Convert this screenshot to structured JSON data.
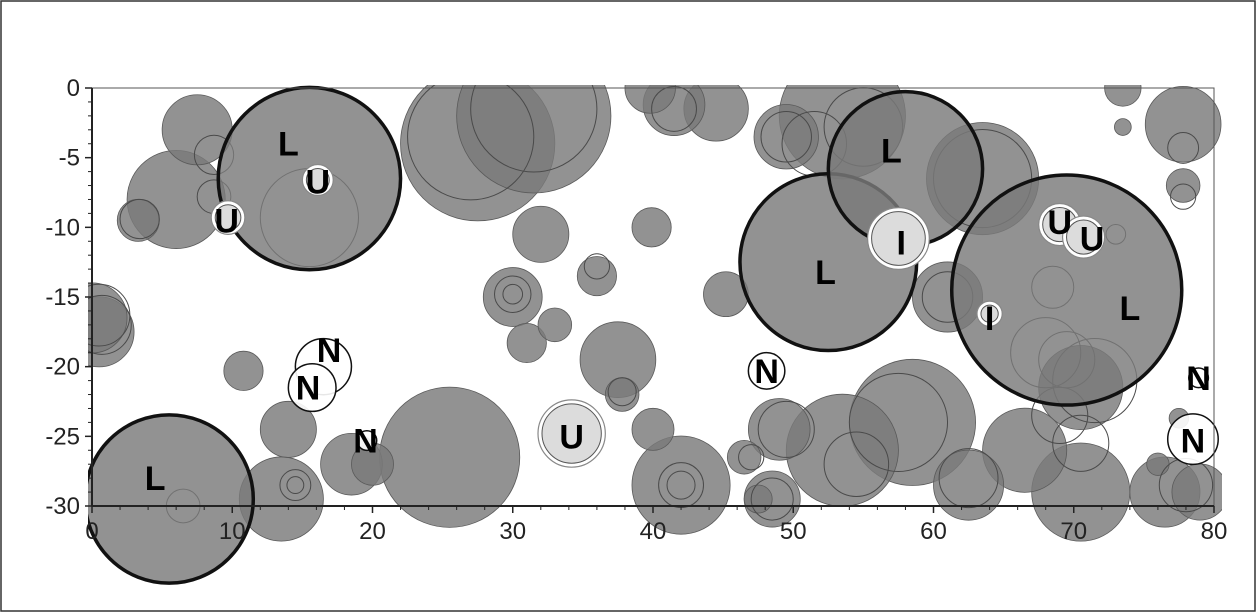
{
  "chart_data": {
    "type": "scatter",
    "title": "",
    "xlabel": "",
    "ylabel": "",
    "xlim": [
      0,
      80
    ],
    "ylim": [
      -30,
      0
    ],
    "grid": false,
    "x_ticks": [
      "0",
      "10",
      "20",
      "30",
      "40",
      "50",
      "60",
      "70",
      "80"
    ],
    "y_ticks": [
      "0",
      "-5",
      "-10",
      "-15",
      "-20",
      "-25",
      "-30"
    ],
    "colors": {
      "filled": "#7a7a7a",
      "light": "#dcdcdc",
      "stroke": "#111111"
    },
    "circles": [
      {
        "x": 27.5,
        "y": -4,
        "r": 5.5,
        "style": "filled"
      },
      {
        "x": 31.5,
        "y": -2,
        "r": 5.5,
        "style": "filled"
      },
      {
        "x": 25.5,
        "y": -26.5,
        "r": 5,
        "style": "filled"
      },
      {
        "x": 58.5,
        "y": -24,
        "r": 4.5,
        "style": "filled"
      },
      {
        "x": 53.5,
        "y": -26,
        "r": 4,
        "style": "filled"
      },
      {
        "x": 53.5,
        "y": -2,
        "r": 4.5,
        "style": "filled"
      },
      {
        "x": 63.5,
        "y": -6.5,
        "r": 4,
        "style": "filled"
      },
      {
        "x": 42,
        "y": -28.5,
        "r": 3.5,
        "style": "filled"
      },
      {
        "x": 70.5,
        "y": -29,
        "r": 3.5,
        "style": "filled"
      },
      {
        "x": 66.5,
        "y": -26,
        "r": 3,
        "style": "filled"
      },
      {
        "x": 62.5,
        "y": -28.5,
        "r": 2.5,
        "style": "filled"
      },
      {
        "x": 70.5,
        "y": -21.5,
        "r": 3,
        "style": "filled"
      },
      {
        "x": 6,
        "y": -8,
        "r": 3.5,
        "style": "filled"
      },
      {
        "x": 7.5,
        "y": -3,
        "r": 2.5,
        "style": "filled"
      },
      {
        "x": 0.5,
        "y": -17.5,
        "r": 2.5,
        "style": "filled"
      },
      {
        "x": 0,
        "y": -16.5,
        "r": 2.5,
        "style": "filled"
      },
      {
        "x": 13.5,
        "y": -29.5,
        "r": 3,
        "style": "filled"
      },
      {
        "x": 14,
        "y": -24.5,
        "r": 2,
        "style": "filled"
      },
      {
        "x": 18.5,
        "y": -27,
        "r": 2.2,
        "style": "filled"
      },
      {
        "x": 20,
        "y": -27,
        "r": 1.5,
        "style": "filled"
      },
      {
        "x": 37.5,
        "y": -19.5,
        "r": 2.7,
        "style": "filled"
      },
      {
        "x": 49,
        "y": -24.5,
        "r": 2.2,
        "style": "filled"
      },
      {
        "x": 48.5,
        "y": -29.5,
        "r": 2,
        "style": "filled"
      },
      {
        "x": 61,
        "y": -15,
        "r": 2.5,
        "style": "filled"
      },
      {
        "x": 49.5,
        "y": -3.5,
        "r": 2.3,
        "style": "filled"
      },
      {
        "x": 44.5,
        "y": -1.5,
        "r": 2.3,
        "style": "filled"
      },
      {
        "x": 41.5,
        "y": -1.2,
        "r": 2.2,
        "style": "filled"
      },
      {
        "x": 39.8,
        "y": 0,
        "r": 1.8,
        "style": "filled"
      },
      {
        "x": 32,
        "y": -10.5,
        "r": 2,
        "style": "filled"
      },
      {
        "x": 30,
        "y": -15,
        "r": 2.1,
        "style": "filled"
      },
      {
        "x": 31,
        "y": -18.3,
        "r": 1.4,
        "style": "filled"
      },
      {
        "x": 33,
        "y": -17,
        "r": 1.2,
        "style": "filled"
      },
      {
        "x": 36,
        "y": -13.5,
        "r": 1.4,
        "style": "filled"
      },
      {
        "x": 39.9,
        "y": -10,
        "r": 1.4,
        "style": "filled"
      },
      {
        "x": 45.2,
        "y": -14.8,
        "r": 1.6,
        "style": "filled"
      },
      {
        "x": 40,
        "y": -24.5,
        "r": 1.5,
        "style": "filled"
      },
      {
        "x": 37.8,
        "y": -22,
        "r": 1.2,
        "style": "filled"
      },
      {
        "x": 10.8,
        "y": -20.3,
        "r": 1.4,
        "style": "filled"
      },
      {
        "x": 3.3,
        "y": -9.5,
        "r": 1.5,
        "style": "filled"
      },
      {
        "x": 73.5,
        "y": 0,
        "r": 1.3,
        "style": "filled"
      },
      {
        "x": 73.5,
        "y": -2.8,
        "r": 0.6,
        "style": "filled"
      },
      {
        "x": 77.8,
        "y": -2.6,
        "r": 2.7,
        "style": "filled"
      },
      {
        "x": 77.8,
        "y": -7,
        "r": 1.2,
        "style": "filled"
      },
      {
        "x": 76.5,
        "y": -29,
        "r": 2.5,
        "style": "filled"
      },
      {
        "x": 79,
        "y": -29,
        "r": 2,
        "style": "filled"
      },
      {
        "x": 46.5,
        "y": -26.5,
        "r": 1.2,
        "style": "filled"
      },
      {
        "x": 47.5,
        "y": -29.5,
        "r": 1,
        "style": "filled"
      },
      {
        "x": 76,
        "y": -27,
        "r": 0.8,
        "style": "filled"
      },
      {
        "x": 77.5,
        "y": -23.7,
        "r": 0.7,
        "style": "filled"
      },
      {
        "x": 15.5,
        "y": -6.5,
        "r": 6.5,
        "style": "bold"
      },
      {
        "x": 5.5,
        "y": -29.5,
        "r": 6,
        "style": "bold"
      },
      {
        "x": 52.5,
        "y": -12.5,
        "r": 6.3,
        "style": "bold"
      },
      {
        "x": 58,
        "y": -5.8,
        "r": 5.5,
        "style": "bold"
      },
      {
        "x": 69.5,
        "y": -14.5,
        "r": 8.2,
        "style": "bold"
      },
      {
        "x": 16.1,
        "y": -6.6,
        "r": 1.1,
        "style": "light"
      },
      {
        "x": 9.7,
        "y": -9.3,
        "r": 1.2,
        "style": "light"
      },
      {
        "x": 57.5,
        "y": -10.8,
        "r": 2.2,
        "style": "light"
      },
      {
        "x": 64,
        "y": -16.2,
        "r": 0.9,
        "style": "light"
      },
      {
        "x": 69,
        "y": -9.8,
        "r": 1.5,
        "style": "light"
      },
      {
        "x": 70.7,
        "y": -10.7,
        "r": 1.5,
        "style": "light"
      },
      {
        "x": 34.2,
        "y": -24.8,
        "r": 2.4,
        "style": "light"
      },
      {
        "x": 16.5,
        "y": -20,
        "r": 2,
        "style": "open"
      },
      {
        "x": 15.7,
        "y": -21.5,
        "r": 1.7,
        "style": "open"
      },
      {
        "x": 48.1,
        "y": -20.3,
        "r": 1.3,
        "style": "open"
      },
      {
        "x": 78.5,
        "y": -25.2,
        "r": 1.8,
        "style": "open"
      },
      {
        "x": 78.9,
        "y": -20.8,
        "r": 0.7,
        "style": "open"
      },
      {
        "x": 19.6,
        "y": -25.3,
        "r": 0.7,
        "style": "open"
      }
    ],
    "outlines": [
      {
        "x": 27,
        "y": -3.5,
        "r": 4.5
      },
      {
        "x": 31.5,
        "y": -1.5,
        "r": 4.5
      },
      {
        "x": 15.5,
        "y": -9.3,
        "r": 3.5
      },
      {
        "x": 8.7,
        "y": -4.8,
        "r": 1.4
      },
      {
        "x": 8.7,
        "y": -7.8,
        "r": 1.2
      },
      {
        "x": 3.4,
        "y": -9.4,
        "r": 1.4
      },
      {
        "x": 0.5,
        "y": -16.3,
        "r": 2.2
      },
      {
        "x": 14.5,
        "y": -28.5,
        "r": 1.1
      },
      {
        "x": 14.5,
        "y": -28.5,
        "r": 0.6
      },
      {
        "x": 6.5,
        "y": -30,
        "r": 1.2
      },
      {
        "x": 30,
        "y": -14.8,
        "r": 1.3
      },
      {
        "x": 30,
        "y": -14.8,
        "r": 0.7
      },
      {
        "x": 36,
        "y": -12.8,
        "r": 0.9
      },
      {
        "x": 37.8,
        "y": -21.8,
        "r": 1
      },
      {
        "x": 42,
        "y": -28.5,
        "r": 1.6
      },
      {
        "x": 42,
        "y": -28.5,
        "r": 1
      },
      {
        "x": 49.5,
        "y": -24.5,
        "r": 2
      },
      {
        "x": 48.5,
        "y": -29.5,
        "r": 1.5
      },
      {
        "x": 54.5,
        "y": -27,
        "r": 2.3
      },
      {
        "x": 57.5,
        "y": -24,
        "r": 3.5
      },
      {
        "x": 49.5,
        "y": -3.5,
        "r": 1.8
      },
      {
        "x": 51.5,
        "y": -4,
        "r": 2.3
      },
      {
        "x": 55,
        "y": -2.8,
        "r": 2.8
      },
      {
        "x": 41.5,
        "y": -1.5,
        "r": 1.6
      },
      {
        "x": 61,
        "y": -15,
        "r": 1.8
      },
      {
        "x": 63.5,
        "y": -6.5,
        "r": 3.5
      },
      {
        "x": 68.5,
        "y": -14.3,
        "r": 1.5
      },
      {
        "x": 68,
        "y": -19,
        "r": 2.5
      },
      {
        "x": 69.5,
        "y": -19.5,
        "r": 2
      },
      {
        "x": 71.5,
        "y": -21,
        "r": 3
      },
      {
        "x": 69,
        "y": -23.5,
        "r": 2
      },
      {
        "x": 70.5,
        "y": -25.5,
        "r": 2
      },
      {
        "x": 62.5,
        "y": -28,
        "r": 2.1
      },
      {
        "x": 73,
        "y": -10.5,
        "r": 0.7
      },
      {
        "x": 77.8,
        "y": -4.3,
        "r": 1.1
      },
      {
        "x": 77.8,
        "y": -7.8,
        "r": 0.9
      },
      {
        "x": 78,
        "y": -28.5,
        "r": 1.9
      },
      {
        "x": 47,
        "y": -26.5,
        "r": 0.9
      },
      {
        "x": 0.7,
        "y": -17,
        "r": 2.1
      }
    ],
    "annotations": [
      {
        "text": "L",
        "x": 14,
        "y": -4
      },
      {
        "text": "U",
        "x": 16.1,
        "y": -6.7
      },
      {
        "text": "U",
        "x": 9.6,
        "y": -9.5
      },
      {
        "text": "L",
        "x": 4.5,
        "y": -28
      },
      {
        "text": "N",
        "x": 16.9,
        "y": -18.8
      },
      {
        "text": "N",
        "x": 15.4,
        "y": -21.5
      },
      {
        "text": "N",
        "x": 19.5,
        "y": -25.3
      },
      {
        "text": "U",
        "x": 34.2,
        "y": -25
      },
      {
        "text": "N",
        "x": 48.1,
        "y": -20.3
      },
      {
        "text": "L",
        "x": 52.3,
        "y": -13.2
      },
      {
        "text": "L",
        "x": 57,
        "y": -4.5
      },
      {
        "text": "I",
        "x": 57.7,
        "y": -11.1
      },
      {
        "text": "I",
        "x": 64,
        "y": -16.5
      },
      {
        "text": "U",
        "x": 69,
        "y": -9.6
      },
      {
        "text": "U",
        "x": 71.3,
        "y": -10.8
      },
      {
        "text": "L",
        "x": 74,
        "y": -15.8
      },
      {
        "text": "N",
        "x": 78.9,
        "y": -20.8
      },
      {
        "text": "N",
        "x": 78.5,
        "y": -25.3
      }
    ]
  }
}
